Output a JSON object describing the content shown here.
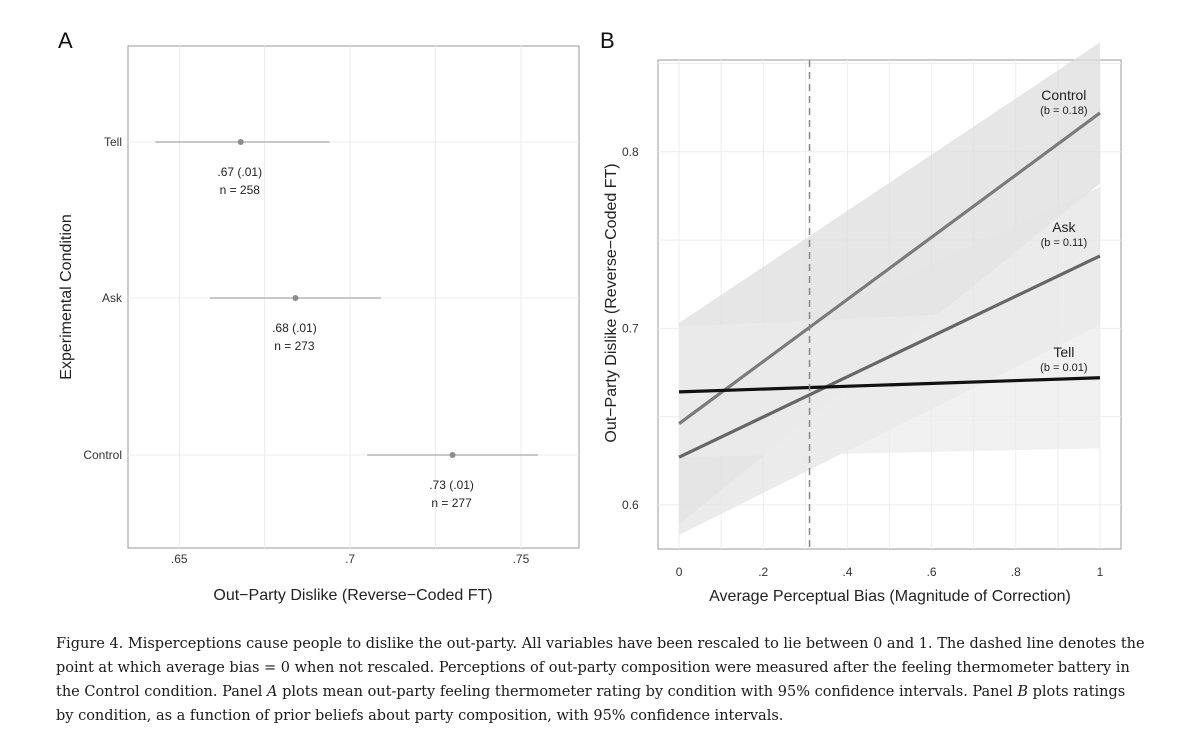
{
  "chart_data": [
    {
      "panel": "A",
      "type": "scatter",
      "subtype": "dot-and-whisker",
      "xlabel": "Out−Party Dislike (Reverse−Coded FT)",
      "ylabel": "Experimental Condition",
      "xlim": [
        0.635,
        0.767
      ],
      "xticks": [
        ".65",
        ".7",
        ".75"
      ],
      "xtick_values": [
        0.65,
        0.7,
        0.75
      ],
      "grid": true,
      "points": [
        {
          "condition": "Tell",
          "mean": 0.668,
          "ci": [
            0.643,
            0.694
          ],
          "label_line1": ".67 (.01)",
          "label_line2": "n = 258"
        },
        {
          "condition": "Ask",
          "mean": 0.684,
          "ci": [
            0.659,
            0.709
          ],
          "label_line1": ".68 (.01)",
          "label_line2": "n = 273"
        },
        {
          "condition": "Control",
          "mean": 0.73,
          "ci": [
            0.705,
            0.755
          ],
          "label_line1": ".73 (.01)",
          "label_line2": "n = 277"
        }
      ]
    },
    {
      "panel": "B",
      "type": "line",
      "xlabel": "Average Perceptual Bias (Magnitude of Correction)",
      "ylabel": "Out−Party Dislike (Reverse−Coded FT)",
      "xlim": [
        -0.05,
        1.05
      ],
      "ylim": [
        0.575,
        0.852
      ],
      "xticks": [
        "0",
        ".2",
        ".4",
        ".6",
        ".8",
        "1"
      ],
      "xtick_values": [
        0,
        0.2,
        0.4,
        0.6,
        0.8,
        1
      ],
      "yticks": [
        "0.6",
        "0.7",
        "0.8"
      ],
      "ytick_values": [
        0.6,
        0.7,
        0.8
      ],
      "grid": true,
      "reference_line_x": 0.31,
      "series": [
        {
          "name": "Control",
          "coef_label": "(b = 0.18)",
          "x": [
            0,
            1
          ],
          "y": [
            0.646,
            0.822
          ],
          "ci_lower": [
            0.589,
            0.782
          ],
          "ci_upper": [
            0.703,
            0.862
          ],
          "color": "#7a7a7a",
          "band_color": "#dddddd"
        },
        {
          "name": "Ask",
          "coef_label": "(b = 0.11)",
          "x": [
            0,
            1
          ],
          "y": [
            0.627,
            0.741
          ],
          "ci_lower": [
            0.583,
            0.702
          ],
          "ci_upper": [
            0.671,
            0.78
          ],
          "color": "#666666",
          "band_color": "#e4e4e4"
        },
        {
          "name": "Tell",
          "coef_label": "(b = 0.01)",
          "x": [
            0,
            1
          ],
          "y": [
            0.664,
            0.672
          ],
          "ci_lower": [
            0.627,
            0.632
          ],
          "ci_upper": [
            0.701,
            0.712
          ],
          "color": "#111111",
          "band_color": "#ebebeb"
        }
      ]
    }
  ],
  "caption": {
    "prefix": "Figure 4. Misperceptions cause people to dislike the out-party. All variables have been rescaled to lie between 0 and 1. The dashed line denotes the point at which average bias = 0 when not rescaled. Perceptions of out-party composition were measured after the feeling thermometer battery in the Control condition. Panel ",
    "panel_a": "A",
    "middle": " plots mean out-party feeling thermometer rating by condition with 95% confidence intervals. Panel ",
    "panel_b": "B",
    "suffix": " plots ratings by condition, as a function of prior beliefs about party composition, with 95% confidence intervals."
  }
}
